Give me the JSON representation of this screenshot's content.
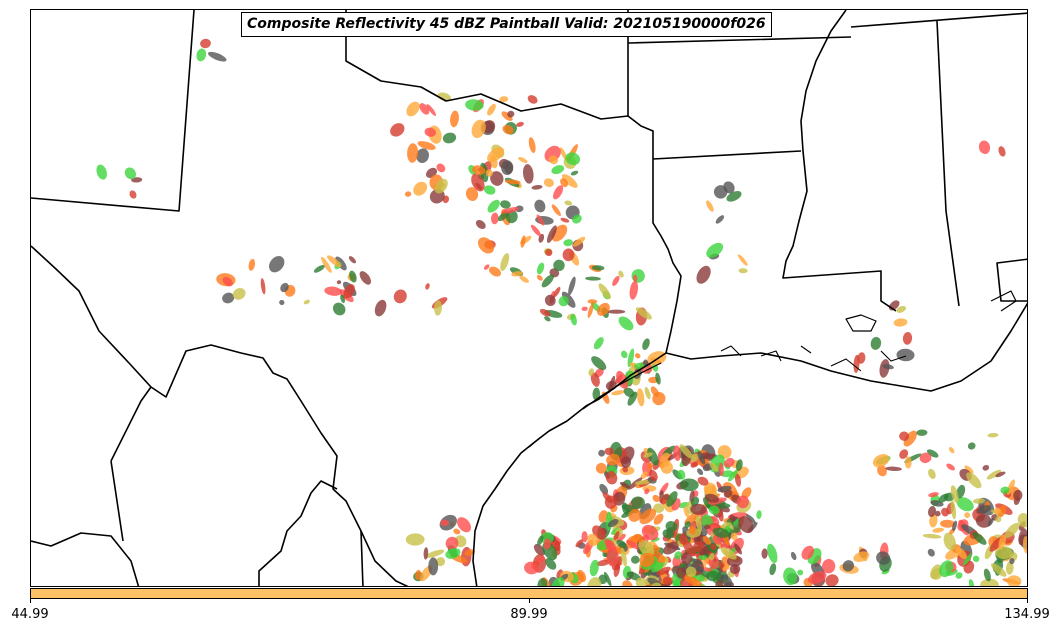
{
  "title": "Composite Reflectivity 45 dBZ Paintball Valid: 202105190000f026",
  "colorbar": {
    "color": "#ffc166",
    "ticks": [
      "44.99",
      "89.99",
      "134.99"
    ]
  },
  "paintball_colors": [
    "#2e7d32",
    "#c8c04a",
    "#ff4d4d",
    "#ffa93a",
    "#8b3a3a",
    "#3cd43c",
    "#555555",
    "#ff7a1a",
    "#d43c2e"
  ]
}
